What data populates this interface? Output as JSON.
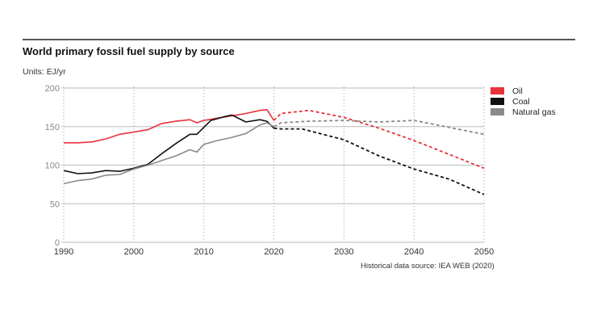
{
  "chart_data": {
    "type": "line",
    "title": "World primary fossil fuel supply by source",
    "subtitle": "Units: EJ/yr",
    "xlabel": "",
    "ylabel": "EJ/yr",
    "xlim": [
      1990,
      2050
    ],
    "ylim": [
      0,
      200
    ],
    "x_ticks": [
      1990,
      2000,
      2010,
      2020,
      2030,
      2040,
      2050
    ],
    "y_ticks": [
      0,
      50,
      100,
      150,
      200
    ],
    "grid": "horizontal solid at y ticks; vertical dotted at x ticks",
    "legend_position": "right",
    "annotation": "Historical data source: IEA WEB (2020)",
    "series": [
      {
        "name": "Oil",
        "color": "#E8323C",
        "historical": {
          "x": [
            1990,
            1992,
            1994,
            1996,
            1998,
            2000,
            2002,
            2004,
            2006,
            2008,
            2009,
            2010,
            2012,
            2014,
            2016,
            2018,
            2019,
            2020
          ],
          "y": [
            129,
            129,
            130,
            134,
            140,
            143,
            146,
            154,
            157,
            159,
            155,
            158,
            161,
            164,
            167,
            171,
            172,
            158
          ]
        },
        "projection": {
          "x": [
            2020,
            2021,
            2025,
            2030,
            2035,
            2040,
            2045,
            2050
          ],
          "y": [
            158,
            167,
            171,
            162,
            148,
            132,
            114,
            96
          ]
        }
      },
      {
        "name": "Coal",
        "color": "#111111",
        "historical": {
          "x": [
            1990,
            1992,
            1994,
            1996,
            1998,
            2000,
            2002,
            2004,
            2006,
            2008,
            2009,
            2011,
            2013,
            2014,
            2016,
            2018,
            2019,
            2020
          ],
          "y": [
            93,
            89,
            90,
            93,
            92,
            96,
            101,
            115,
            128,
            140,
            140,
            158,
            163,
            165,
            156,
            159,
            157,
            148
          ]
        },
        "projection": {
          "x": [
            2020,
            2021,
            2024,
            2030,
            2035,
            2040,
            2045,
            2050
          ],
          "y": [
            148,
            147,
            147,
            133,
            112,
            95,
            82,
            62
          ]
        }
      },
      {
        "name": "Natural gas",
        "color": "#8C8A84",
        "historical": {
          "x": [
            1990,
            1992,
            1994,
            1996,
            1998,
            2000,
            2002,
            2004,
            2006,
            2008,
            2009,
            2010,
            2012,
            2014,
            2016,
            2018,
            2019,
            2020
          ],
          "y": [
            76,
            80,
            82,
            87,
            88,
            95,
            100,
            106,
            112,
            120,
            117,
            127,
            132,
            136,
            141,
            152,
            155,
            150
          ]
        },
        "projection": {
          "x": [
            2020,
            2021,
            2025,
            2030,
            2035,
            2040,
            2045,
            2050
          ],
          "y": [
            150,
            155,
            157,
            158,
            156,
            158,
            149,
            140
          ]
        }
      }
    ]
  },
  "colors": {
    "grid": "#c8c8c8",
    "axis_text": "#888888",
    "rule": "#555555"
  }
}
